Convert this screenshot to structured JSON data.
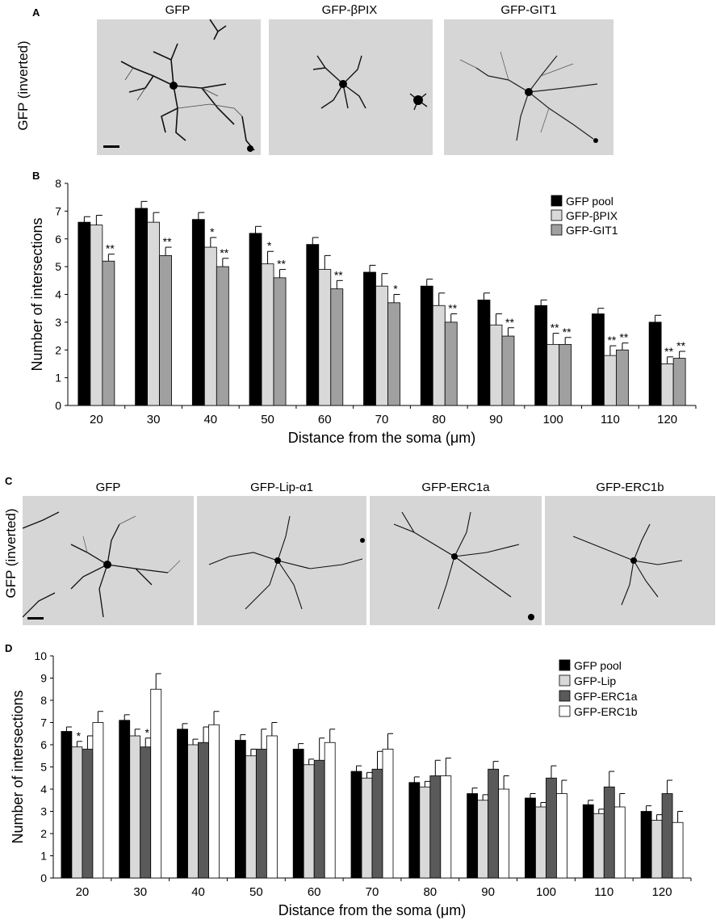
{
  "panel_a": {
    "letter": "A",
    "side_label": "GFP (inverted)",
    "images": [
      {
        "title": "GFP"
      },
      {
        "title": "GFP-βPIX"
      },
      {
        "title": "GFP-GIT1"
      }
    ]
  },
  "panel_c": {
    "letter": "C",
    "side_label": "GFP (inverted)",
    "images": [
      {
        "title": "GFP"
      },
      {
        "title": "GFP-Lip-α1"
      },
      {
        "title": "GFP-ERC1a"
      },
      {
        "title": "GFP-ERC1b"
      }
    ]
  },
  "chart_data": [
    {
      "panel": "B",
      "type": "bar",
      "xlabel": "Distance from the soma (μm)",
      "ylabel": "Number of intersections",
      "ylim": [
        0,
        8
      ],
      "yticks": [
        0,
        1,
        2,
        3,
        4,
        5,
        6,
        7,
        8
      ],
      "categories": [
        "20",
        "30",
        "40",
        "50",
        "60",
        "70",
        "80",
        "90",
        "100",
        "110",
        "120"
      ],
      "legend_position": "top-right",
      "series": [
        {
          "name": "GFP  pool",
          "color": "#000000",
          "values": [
            6.6,
            7.1,
            6.7,
            6.2,
            5.8,
            4.8,
            4.3,
            3.8,
            3.6,
            3.3,
            3.0
          ],
          "errors": [
            0.2,
            0.25,
            0.25,
            0.25,
            0.25,
            0.25,
            0.25,
            0.25,
            0.2,
            0.2,
            0.25
          ],
          "sig": [
            "",
            "",
            "",
            "",
            "",
            "",
            "",
            "",
            "",
            "",
            ""
          ]
        },
        {
          "name": "GFP-βPIX",
          "color": "#d9d9d9",
          "values": [
            6.5,
            6.6,
            5.7,
            5.1,
            4.9,
            4.3,
            3.6,
            2.9,
            2.2,
            1.8,
            1.5
          ],
          "errors": [
            0.35,
            0.35,
            0.35,
            0.45,
            0.5,
            0.45,
            0.45,
            0.4,
            0.4,
            0.35,
            0.25
          ],
          "sig": [
            "",
            "",
            "*",
            "*",
            "",
            "",
            "",
            "",
            "**",
            "**",
            "**"
          ]
        },
        {
          "name": "GFP-GIT1",
          "color": "#a0a0a0",
          "values": [
            5.2,
            5.4,
            5.0,
            4.6,
            4.2,
            3.7,
            3.0,
            2.5,
            2.2,
            2.0,
            1.7
          ],
          "errors": [
            0.25,
            0.3,
            0.3,
            0.3,
            0.3,
            0.3,
            0.3,
            0.3,
            0.25,
            0.25,
            0.25
          ],
          "sig": [
            "**",
            "**",
            "**",
            "**",
            "**",
            "*",
            "**",
            "**",
            "**",
            "**",
            "**"
          ]
        }
      ]
    },
    {
      "panel": "D",
      "type": "bar",
      "xlabel": "Distance from the soma (μm)",
      "ylabel": "Number of intersections",
      "ylim": [
        0,
        10
      ],
      "yticks": [
        0,
        1,
        2,
        3,
        4,
        5,
        6,
        7,
        8,
        9,
        10
      ],
      "categories": [
        "20",
        "30",
        "40",
        "50",
        "60",
        "70",
        "80",
        "90",
        "100",
        "110",
        "120"
      ],
      "legend_position": "top-right",
      "series": [
        {
          "name": "GFP  pool",
          "color": "#000000",
          "values": [
            6.6,
            7.1,
            6.7,
            6.2,
            5.8,
            4.8,
            4.3,
            3.8,
            3.6,
            3.3,
            3.0
          ],
          "errors": [
            0.2,
            0.25,
            0.25,
            0.25,
            0.25,
            0.25,
            0.25,
            0.25,
            0.2,
            0.2,
            0.25
          ],
          "sig": [
            "",
            "",
            "",
            "",
            "",
            "",
            "",
            "",
            "",
            "",
            ""
          ]
        },
        {
          "name": "GFP-Lip",
          "color": "#d9d9d9",
          "values": [
            5.9,
            6.4,
            6.0,
            5.5,
            5.1,
            4.5,
            4.1,
            3.5,
            3.2,
            2.9,
            2.6
          ],
          "errors": [
            0.25,
            0.3,
            0.25,
            0.3,
            0.25,
            0.25,
            0.25,
            0.25,
            0.2,
            0.2,
            0.25
          ],
          "sig": [
            "*",
            "",
            "",
            "",
            "",
            "",
            "",
            "",
            "",
            "",
            ""
          ]
        },
        {
          "name": "GFP-ERC1a",
          "color": "#5a5a5a",
          "values": [
            5.8,
            5.9,
            6.1,
            5.8,
            5.3,
            4.9,
            4.6,
            4.9,
            4.5,
            4.1,
            3.8
          ],
          "errors": [
            0.6,
            0.4,
            0.7,
            0.9,
            1.0,
            0.8,
            0.7,
            0.35,
            0.55,
            0.7,
            0.6
          ],
          "sig": [
            "",
            "*",
            "",
            "",
            "",
            "",
            "",
            "",
            "",
            "",
            ""
          ]
        },
        {
          "name": "GFP-ERC1b",
          "color": "#ffffff",
          "values": [
            7.0,
            8.5,
            6.9,
            6.4,
            6.1,
            5.8,
            4.6,
            4.0,
            3.8,
            3.2,
            2.5
          ],
          "errors": [
            0.5,
            0.7,
            0.6,
            0.6,
            0.6,
            0.7,
            0.8,
            0.6,
            0.6,
            0.6,
            0.5
          ],
          "sig": [
            "",
            "",
            "",
            "",
            "",
            "",
            "",
            "",
            "",
            "",
            ""
          ]
        }
      ]
    }
  ]
}
